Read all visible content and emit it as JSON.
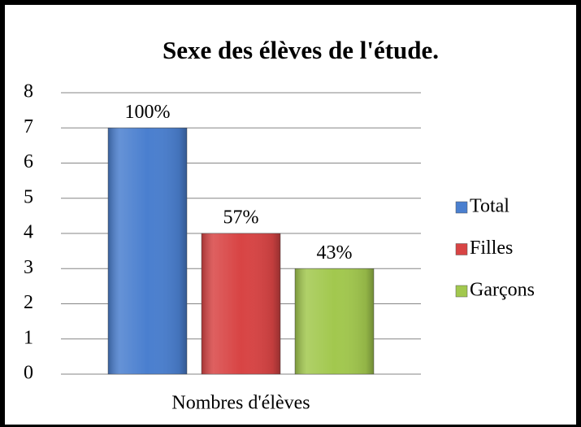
{
  "chart_data": {
    "type": "bar",
    "title": "Sexe des élèves de l'étude.",
    "categories": [
      "Nombres d'élèves"
    ],
    "series": [
      {
        "name": "Total",
        "color": "#4a7fcf",
        "values": [
          7
        ]
      },
      {
        "name": "Filles",
        "color": "#d84444",
        "values": [
          4
        ]
      },
      {
        "name": "Garçons",
        "color": "#a2c84e",
        "values": [
          3
        ]
      }
    ],
    "annotations": [
      "100%",
      "57%",
      "43%"
    ],
    "ylim": [
      0,
      8
    ],
    "yticks": [
      0,
      1,
      2,
      3,
      4,
      5,
      6,
      7,
      8
    ],
    "grid": true,
    "legend": "right"
  }
}
